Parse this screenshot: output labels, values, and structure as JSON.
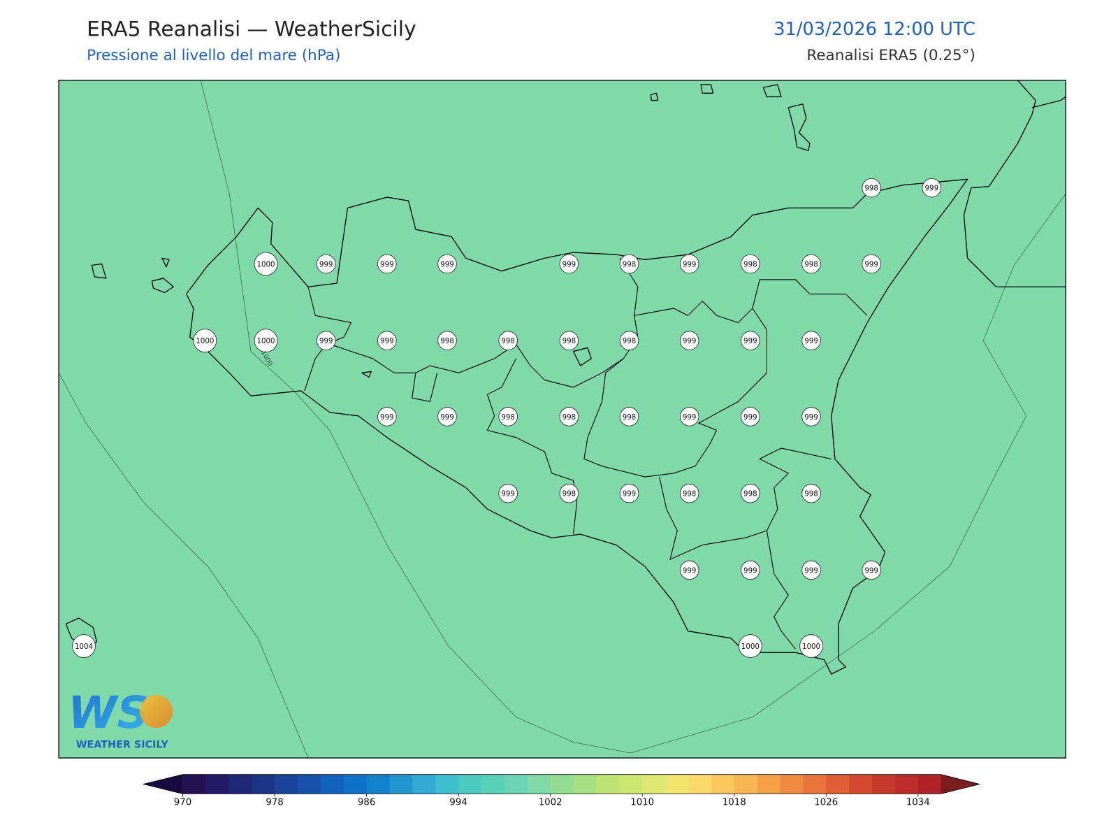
{
  "header": {
    "title": "ERA5 Reanalisi — WeatherSicily",
    "subtitle": "Pressione al livello del mare (hPa)",
    "datetime": "31/03/2026 12:00 UTC",
    "source": "Reanalisi ERA5 (0.25°)"
  },
  "map": {
    "stations": [
      1000,
      999,
      999,
      999,
      999,
      998,
      999,
      998,
      998,
      999,
      998,
      999,
      1000,
      1000,
      999,
      999,
      998,
      998,
      998,
      998,
      999,
      999,
      999,
      999,
      999,
      998,
      998,
      998,
      999,
      999,
      999,
      999,
      998,
      999,
      998,
      998,
      998,
      999,
      999,
      999,
      999,
      1004,
      1000,
      1000
    ],
    "contour_label": "1000"
  },
  "colorbar": {
    "lim": [
      970,
      1036
    ],
    "ticks": [
      970,
      978,
      986,
      994,
      1002,
      1010,
      1018,
      1026,
      1034
    ],
    "colors": [
      "#231151",
      "#241a63",
      "#1e2676",
      "#1c3488",
      "#1a4399",
      "#1652ac",
      "#1162bd",
      "#0d72c8",
      "#1282cc",
      "#2296d0",
      "#31abd3",
      "#3fbfce",
      "#4ccabf",
      "#5ad0b8",
      "#6bd4b5",
      "#80d9a6",
      "#93dd92",
      "#a6e080",
      "#bbe473",
      "#cde66f",
      "#dde873",
      "#f0e46d",
      "#fad86a",
      "#fbc860",
      "#f8b553",
      "#f4a148",
      "#ee8b40",
      "#e7743b",
      "#df5e35",
      "#d44a30",
      "#c8392d",
      "#bd2c2b",
      "#b02128"
    ],
    "under_color": "#160a3e",
    "over_color": "#7a1d1d"
  },
  "logo": {
    "letters": "WS",
    "text": "WEATHER SICILY"
  }
}
